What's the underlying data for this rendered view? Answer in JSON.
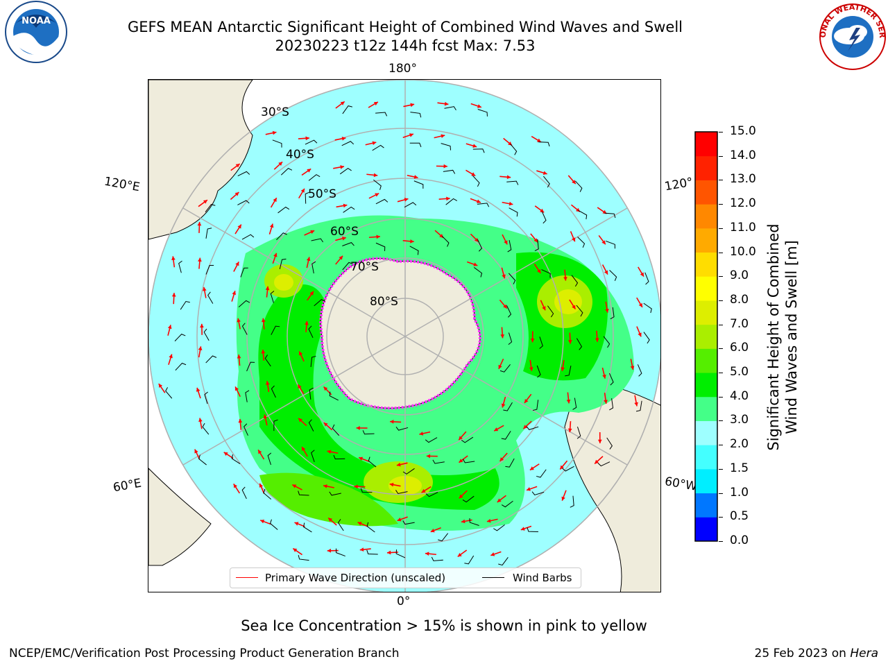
{
  "header": {
    "title_line1": "GEFS MEAN Antarctic Significant Height of Combined Wind Waves and Swell",
    "title_line2": "20230223 t12z 144h fcst   Max: 7.53"
  },
  "logos": {
    "left": {
      "icon": "noaa-logo",
      "text": "NOAA"
    },
    "right": {
      "icon": "nws-logo",
      "text": "NATIONAL WEATHER SERVICE"
    }
  },
  "map": {
    "projection": "south-polar-stereographic",
    "longitude_labels": {
      "top": "180°",
      "bottom": "0°",
      "left_upper": "120°E",
      "left_lower": "60°E",
      "right_upper": "120°",
      "right_lower": "60°W"
    },
    "latitude_labels": [
      "30°S",
      "40°S",
      "50°S",
      "60°S",
      "70°S",
      "80°S"
    ],
    "colors": {
      "land": "#efecdc",
      "ocean_low": "#9effff",
      "grid": "#b0b0b0",
      "ice": "#ff33ff",
      "wave_arrow": "#ff0000",
      "barb": "#000000"
    }
  },
  "legend": {
    "wave_label": "Primary Wave Direction (unscaled)",
    "barb_label": "Wind Barbs"
  },
  "colorbar": {
    "title_line1": "Significant Height of Combined",
    "title_line2": "Wind Waves and Swell [m]",
    "ticks": [
      "0.0",
      "0.5",
      "1.0",
      "1.5",
      "2.0",
      "3.0",
      "4.0",
      "5.0",
      "6.0",
      "7.0",
      "8.0",
      "9.0",
      "10.0",
      "11.0",
      "12.0",
      "13.0",
      "14.0",
      "15.0"
    ],
    "colors": [
      "#0000ff",
      "#0077ff",
      "#00eeff",
      "#44ffff",
      "#9effff",
      "#44ff88",
      "#00ee00",
      "#55ee00",
      "#aaee00",
      "#ddee00",
      "#ffff00",
      "#ffdd00",
      "#ffaa00",
      "#ff8800",
      "#ff5500",
      "#ff2200",
      "#ff0000"
    ]
  },
  "caption": "Sea Ice Concentration > 15% is shown in pink to yellow",
  "footer": {
    "left": "NCEP/EMC/Verification Post Processing Product Generation Branch",
    "right_date": "25 Feb 2023 on ",
    "right_host": "Hera"
  }
}
